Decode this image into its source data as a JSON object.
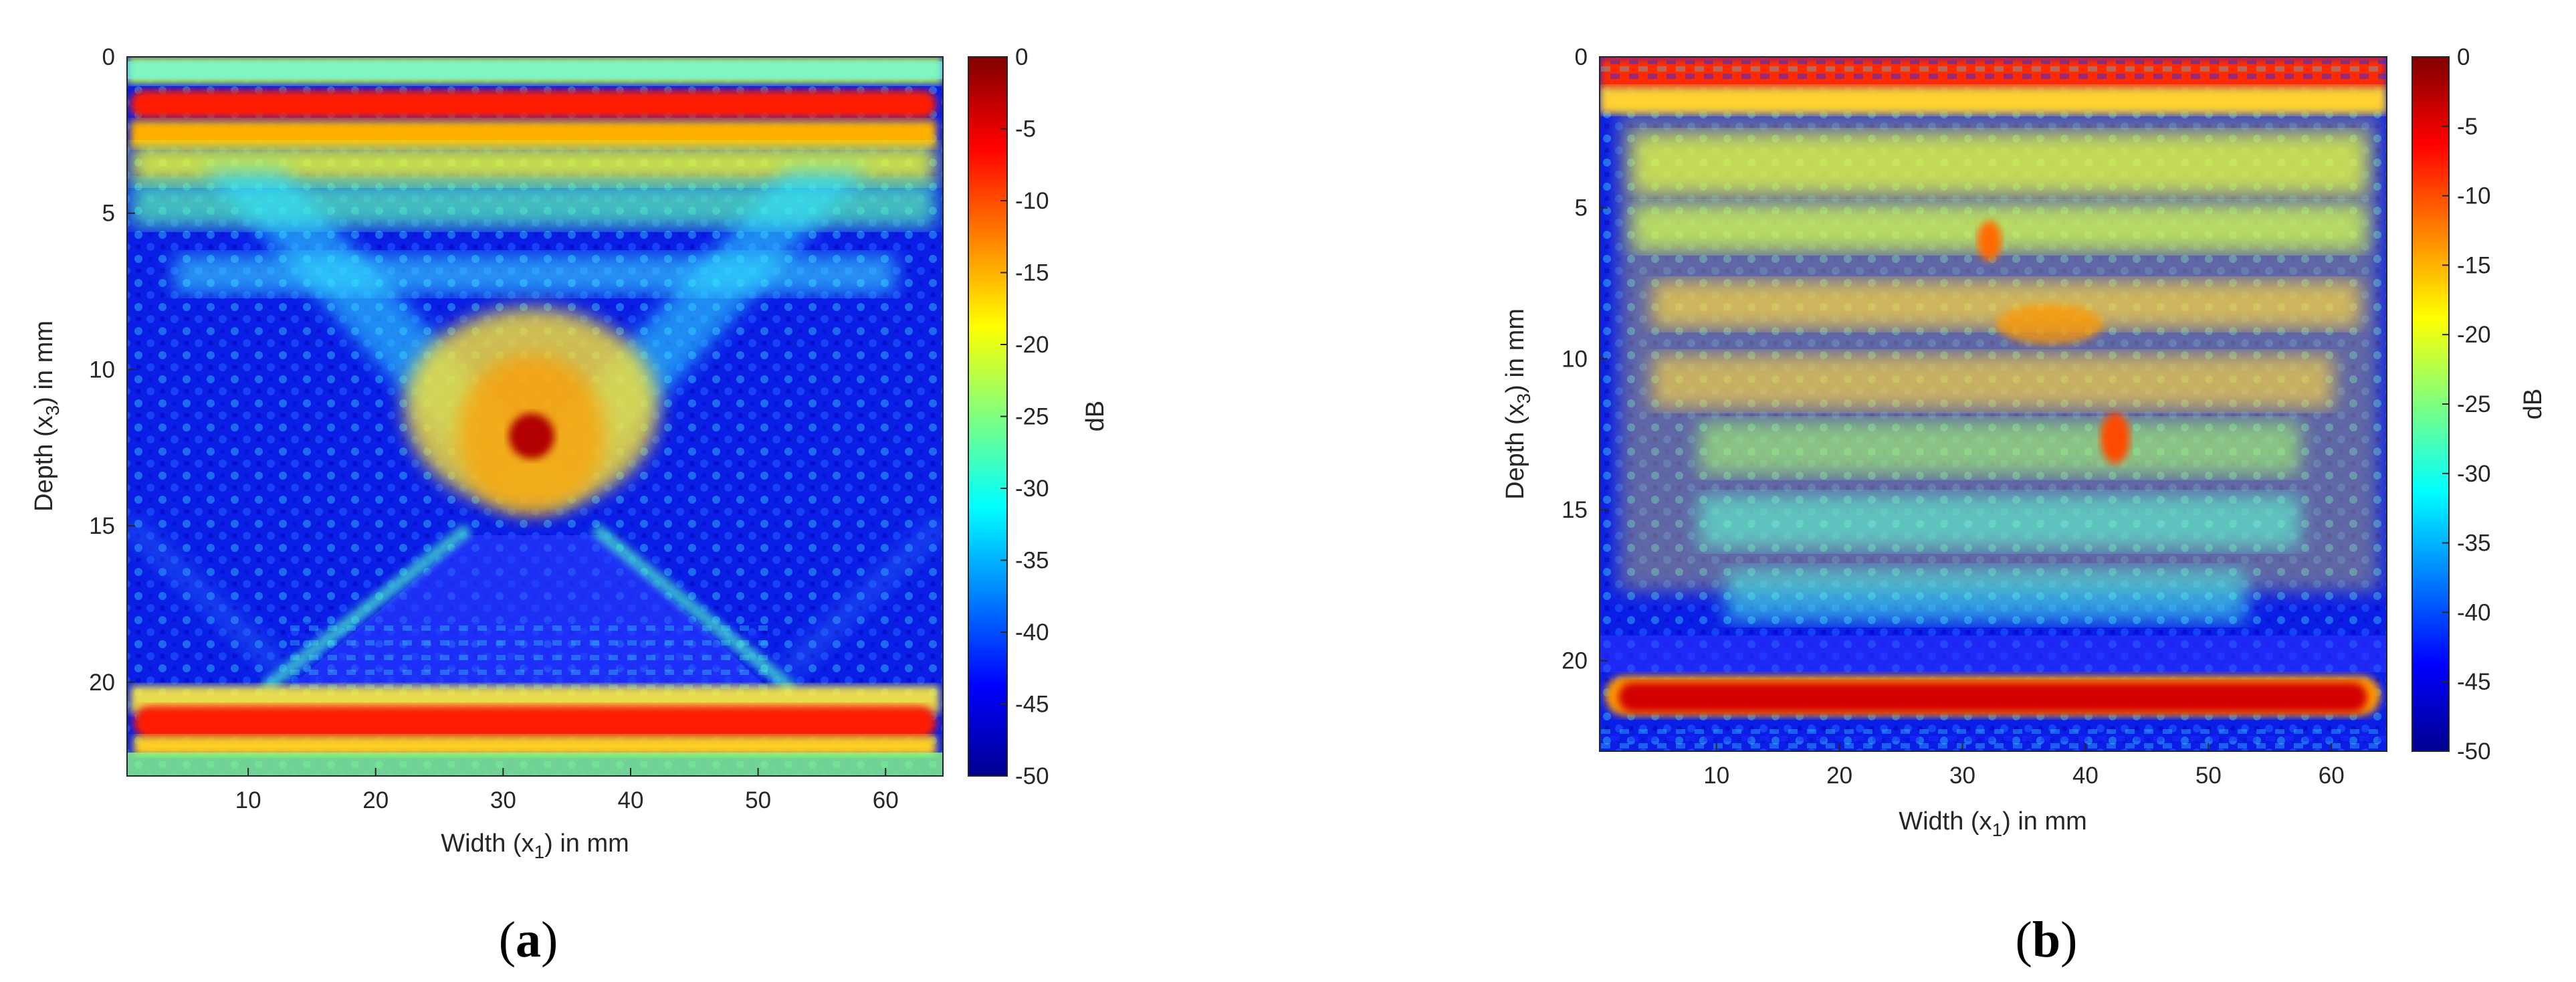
{
  "chart_data": [
    {
      "type": "heatmap",
      "panel_label": "a",
      "xlabel": "Width (x",
      "xlabel_sub": "1",
      "xlabel_suffix": ") in mm",
      "ylabel": "Depth (x",
      "ylabel_sub": "3",
      "ylabel_suffix": ") in mm",
      "x_ticks": [
        10,
        20,
        30,
        40,
        50,
        60
      ],
      "y_ticks": [
        0,
        5,
        10,
        15,
        20
      ],
      "xlim": [
        0.5,
        64.5
      ],
      "ylim": [
        0,
        23
      ],
      "y_reversed": true,
      "colorbar": {
        "label": "dB",
        "ticks": [
          0,
          -5,
          -10,
          -15,
          -20,
          -25,
          -30,
          -35,
          -40,
          -45,
          -50
        ],
        "range": [
          -50,
          0
        ],
        "colormap": "jet"
      },
      "features": [
        {
          "kind": "horizontal band",
          "depth_mm": 1.5,
          "level_db": -3
        },
        {
          "kind": "horizontal band",
          "depth_mm": 2.8,
          "level_db": -18
        },
        {
          "kind": "point reflector",
          "x_mm": 31.5,
          "depth_mm": 12.2,
          "level_db": 0
        },
        {
          "kind": "horizontal band",
          "depth_mm": 21.5,
          "level_db": -5
        }
      ]
    },
    {
      "type": "heatmap",
      "panel_label": "b",
      "xlabel": "Width (x",
      "xlabel_sub": "1",
      "xlabel_suffix": ") in mm",
      "ylabel": "Depth (x",
      "ylabel_sub": "3",
      "ylabel_suffix": ") in mm",
      "x_ticks": [
        10,
        20,
        30,
        40,
        50,
        60
      ],
      "y_ticks": [
        0,
        5,
        10,
        15,
        20
      ],
      "xlim": [
        0.5,
        64.5
      ],
      "ylim": [
        0,
        23
      ],
      "y_reversed": true,
      "colorbar": {
        "label": "dB",
        "ticks": [
          0,
          -5,
          -10,
          -15,
          -20,
          -25,
          -30,
          -35,
          -40,
          -45,
          -50
        ],
        "range": [
          -50,
          0
        ],
        "colormap": "jet"
      },
      "features": [
        {
          "kind": "horizontal band",
          "depth_mm": 0.6,
          "level_db": -5
        },
        {
          "kind": "point reflector",
          "x_mm": 31,
          "depth_mm": 10.8,
          "level_db": -12
        },
        {
          "kind": "horizontal band",
          "depth_mm": 21,
          "level_db": -3
        }
      ]
    }
  ]
}
